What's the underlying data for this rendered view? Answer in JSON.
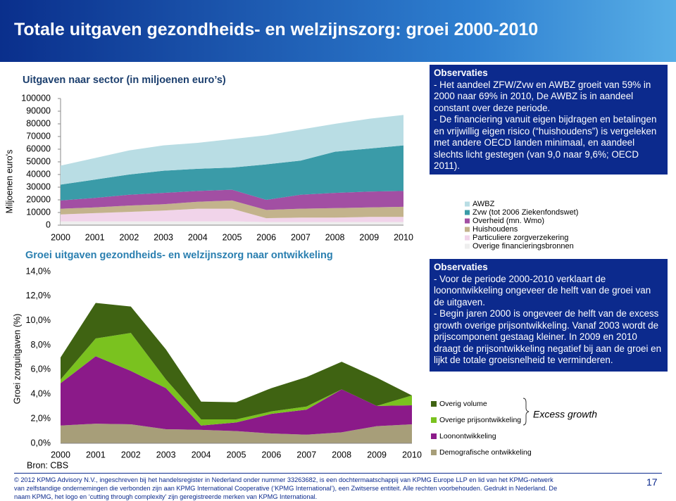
{
  "header": {
    "title": "Totale uitgaven gezondheids- en welzijnszorg: groei 2000-2010"
  },
  "chart_data": [
    {
      "type": "stacked-area",
      "title": "Uitgaven naar sector (in miljoenen euro’s)",
      "y_label": "Miljoenen euro's",
      "categories": [
        "2000",
        "2001",
        "2002",
        "2003",
        "2004",
        "2005",
        "2006",
        "2007",
        "2008",
        "2009",
        "2010"
      ],
      "ylim": [
        0,
        100000
      ],
      "yticks": [
        0,
        10000,
        20000,
        30000,
        40000,
        50000,
        60000,
        70000,
        80000,
        90000,
        100000
      ],
      "grid": false,
      "series": [
        {
          "name": "AWBZ",
          "color": "#b9dde4",
          "values": [
            15000,
            17000,
            19000,
            20000,
            20500,
            22500,
            23000,
            24500,
            22000,
            23500,
            24000
          ]
        },
        {
          "name": "Zvw (tot 2006 Ziekenfondswet)",
          "color": "#3a9ba8",
          "values": [
            12500,
            14500,
            16000,
            17500,
            17500,
            17500,
            28000,
            27000,
            32500,
            34000,
            36000
          ]
        },
        {
          "name": "Overheid (mn. Wmo)",
          "color": "#a24fa3",
          "values": [
            6500,
            7500,
            8500,
            9000,
            8500,
            8500,
            8000,
            11000,
            12000,
            12500,
            12500
          ]
        },
        {
          "name": "Huishoudens",
          "color": "#c3b38c",
          "values": [
            4500,
            4500,
            5000,
            5000,
            5500,
            6500,
            6500,
            7000,
            7500,
            7500,
            8000
          ]
        },
        {
          "name": "Particuliere zorgverzekering",
          "color": "#f1d4ea",
          "values": [
            5500,
            6500,
            7500,
            8500,
            10000,
            10000,
            3000,
            3500,
            3500,
            4000,
            4000
          ]
        },
        {
          "name": "Overige financieringsbronnen",
          "color": "#eeeeee",
          "values": [
            3000,
            3000,
            3000,
            3000,
            3000,
            3000,
            2500,
            2500,
            2500,
            2500,
            2500
          ]
        }
      ]
    },
    {
      "type": "stacked-area",
      "title": "Groei uitgaven gezondheids- en welzijnszorg naar ontwikkeling",
      "y_label": "Groei zorguitgaven (%)",
      "source": "Bron: CBS",
      "annotation": "Excess growth",
      "categories": [
        "2000",
        "2001",
        "2002",
        "2003",
        "2004",
        "2005",
        "2006",
        "2007",
        "2008",
        "2009",
        "2010"
      ],
      "ylim": [
        0,
        14
      ],
      "yticks": [
        {
          "value": 0,
          "label": "0,0%"
        },
        {
          "value": 2,
          "label": "2,0%"
        },
        {
          "value": 4,
          "label": "4,0%"
        },
        {
          "value": 6,
          "label": "6,0%"
        },
        {
          "value": 8,
          "label": "8,0%"
        },
        {
          "value": 10,
          "label": "10,0%"
        },
        {
          "value": 12,
          "label": "12,0%"
        },
        {
          "value": 14,
          "label": "14,0%"
        }
      ],
      "grid": false,
      "series": [
        {
          "name": "Overig volume",
          "color": "#3f6312",
          "values": [
            1.8,
            2.9,
            2.15,
            2.45,
            1.45,
            1.4,
            1.9,
            2.4,
            2.25,
            2.3,
            0
          ]
        },
        {
          "name": "Overige prijsontwikkeling",
          "color": "#7ac21f",
          "values": [
            0.3,
            1.45,
            3.1,
            0.7,
            0.5,
            0.25,
            0.2,
            0.25,
            0,
            0,
            0.8
          ]
        },
        {
          "name": "Loonontwikkeling",
          "color": "#8b1a89",
          "values": [
            3.45,
            5.5,
            4.35,
            3.35,
            0.35,
            0.7,
            1.6,
            2.05,
            3.5,
            1.65,
            1.55
          ]
        },
        {
          "name": "Demografische ontwikkeling",
          "color": "#a79e79",
          "values": [
            1.45,
            1.6,
            1.55,
            1.15,
            1.1,
            1.0,
            0.8,
            0.7,
            0.9,
            1.4,
            1.55
          ]
        }
      ]
    }
  ],
  "observations": [
    {
      "title": "Observaties",
      "paragraphs": [
        "- Het aandeel ZFW/Zvw en AWBZ groeit van 59% in 2000 naar 69% in 2010, De AWBZ is in aandeel constant over deze periode.",
        "- De financiering vanuit eigen bijdragen en betalingen en vrijwillig eigen risico (“huishoudens”) is vergeleken met andere OECD landen minimaal, en aandeel slechts licht gestegen (van 9,0 naar 9,6%; OECD 2011)."
      ]
    },
    {
      "title": "Observaties",
      "paragraphs": [
        "- Voor de periode 2000-2010 verklaart de loonontwikkeling ongeveer de helft van de groei van de uitgaven.",
        "- Begin jaren 2000 is ongeveer de helft van de excess growth overige prijsontwikkeling. Vanaf 2003 wordt de prijscomponent gestaag kleiner. In 2009 en 2010 draagt de prijsontwikkeling negatief bij aan de groei en lijkt de totale groeisnelheid te verminderen."
      ]
    }
  ],
  "footer": {
    "lines": [
      "© 2012 KPMG Advisory N.V., ingeschreven bij het handelsregister in Nederland onder nummer 33263682, is een dochtermaatschappij van KPMG Europe LLP en lid van het KPMG-netwerk",
      "van zelfstandige ondernemingen die verbonden zijn aan KPMG International Cooperative (‘KPMG International’), een Zwitserse entiteit. Alle rechten voorbehouden. Gedrukt in Nederland. De",
      "naam KPMG, het logo en ‘cutting through complexity’ zijn geregistreerde merken van KPMG International."
    ]
  },
  "page_number": 17
}
